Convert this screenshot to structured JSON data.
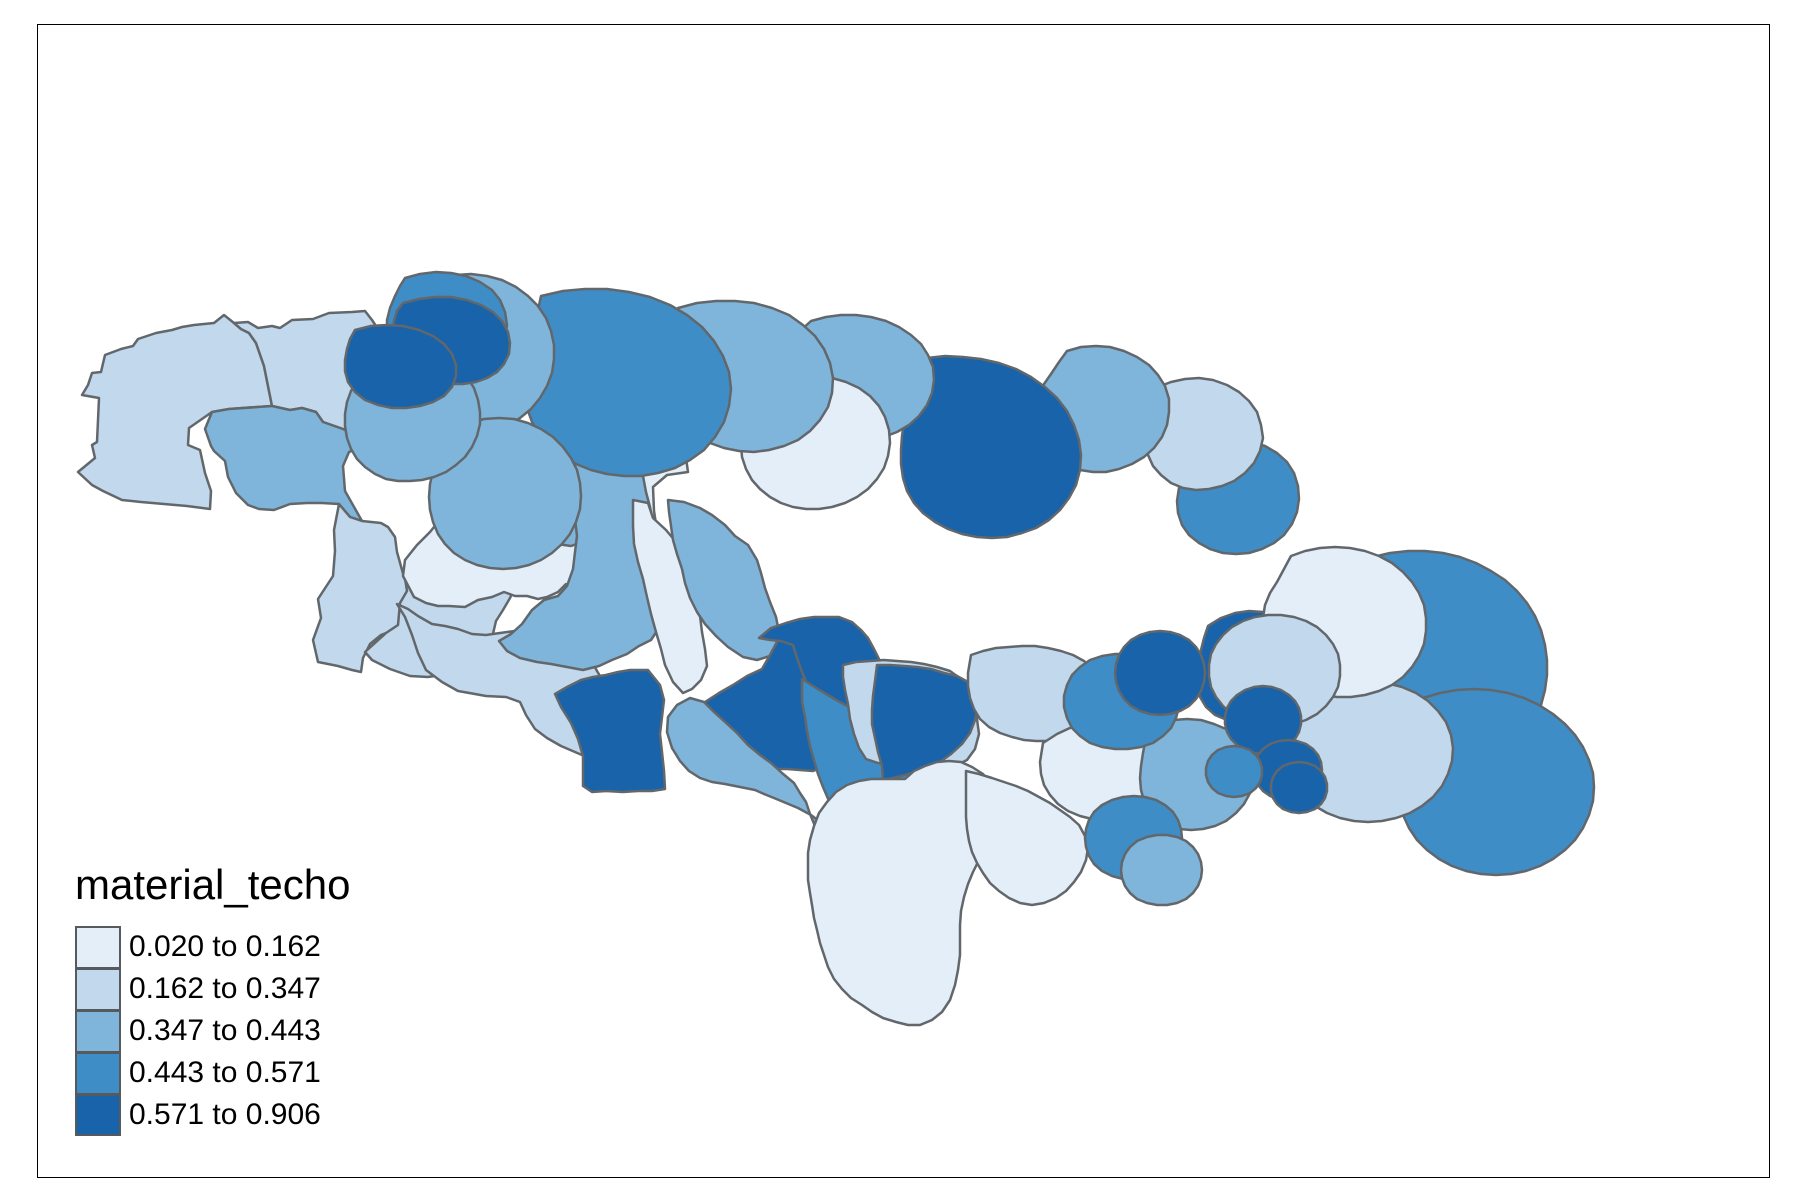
{
  "legend": {
    "title": "material_techo",
    "classes": [
      {
        "label": "0.020 to 0.162",
        "color": "#e3eef9"
      },
      {
        "label": "0.162 to 0.347",
        "color": "#c2d8ec"
      },
      {
        "label": "0.347 to 0.443",
        "color": "#7fb5da"
      },
      {
        "label": "0.443 to 0.571",
        "color": "#3f8dc7"
      },
      {
        "label": "0.571 to 0.906",
        "color": "#1863aa"
      }
    ]
  },
  "border_color": "#62676b"
}
